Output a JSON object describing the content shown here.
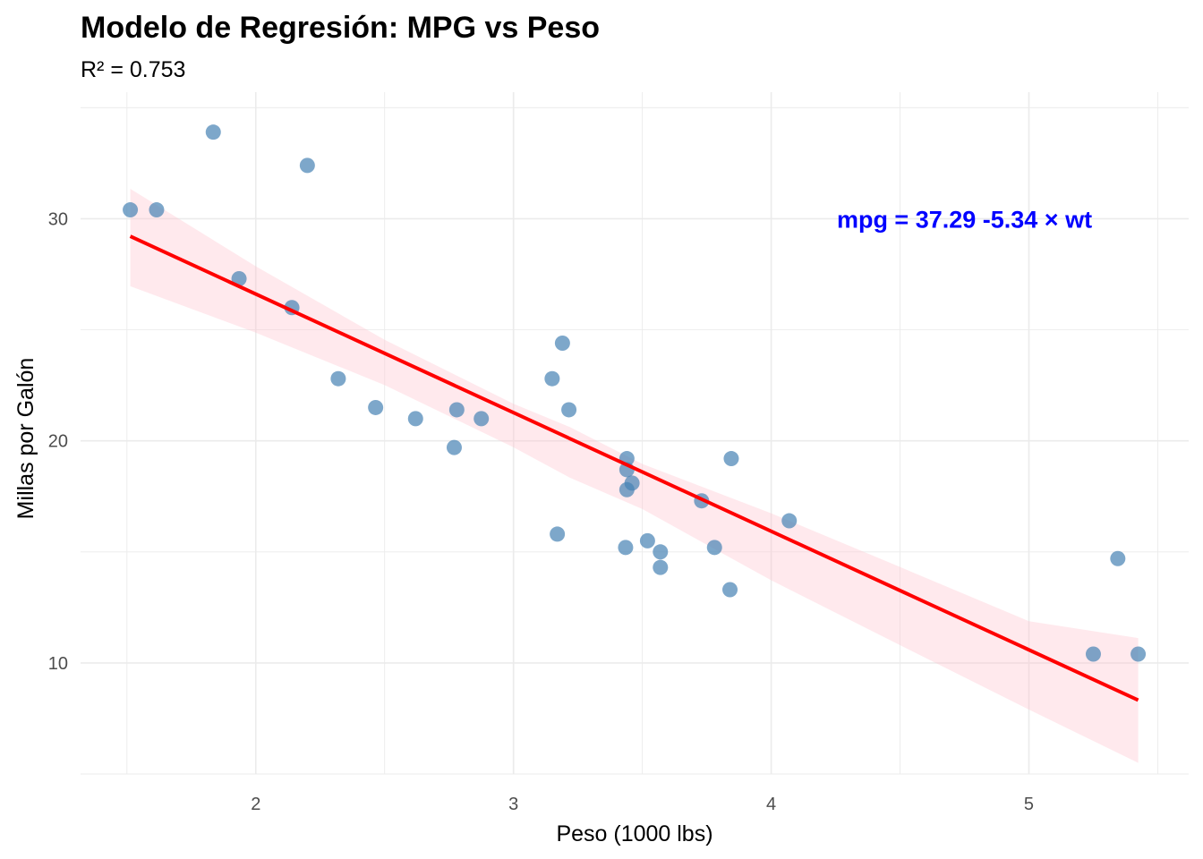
{
  "chart_data": {
    "type": "scatter",
    "title": "Modelo de Regresión: MPG vs Peso",
    "subtitle": "R² = 0.753",
    "xlabel": "Peso (1000 lbs)",
    "ylabel": "Millas por Galón",
    "xlim": [
      1.32,
      5.62
    ],
    "ylim": [
      5.0,
      35.7
    ],
    "x_ticks": [
      2,
      3,
      4,
      5
    ],
    "x_tick_labels": [
      "2",
      "3",
      "4",
      "5"
    ],
    "y_ticks": [
      10,
      20,
      30
    ],
    "y_tick_labels": [
      "10",
      "20",
      "30"
    ],
    "grid": true,
    "legend": "none",
    "series": [
      {
        "points": [
          {
            "x": 1.513,
            "y": 30.4
          },
          {
            "x": 1.615,
            "y": 30.4
          },
          {
            "x": 1.835,
            "y": 33.9
          },
          {
            "x": 1.935,
            "y": 27.3
          },
          {
            "x": 2.14,
            "y": 26.0
          },
          {
            "x": 2.2,
            "y": 32.4
          },
          {
            "x": 2.32,
            "y": 22.8
          },
          {
            "x": 2.465,
            "y": 21.5
          },
          {
            "x": 2.62,
            "y": 21.0
          },
          {
            "x": 2.77,
            "y": 19.7
          },
          {
            "x": 2.78,
            "y": 21.4
          },
          {
            "x": 2.875,
            "y": 21.0
          },
          {
            "x": 3.15,
            "y": 22.8
          },
          {
            "x": 3.17,
            "y": 15.8
          },
          {
            "x": 3.19,
            "y": 24.4
          },
          {
            "x": 3.215,
            "y": 21.4
          },
          {
            "x": 3.435,
            "y": 15.2
          },
          {
            "x": 3.44,
            "y": 18.7
          },
          {
            "x": 3.44,
            "y": 19.2
          },
          {
            "x": 3.44,
            "y": 17.8
          },
          {
            "x": 3.46,
            "y": 18.1
          },
          {
            "x": 3.52,
            "y": 15.5
          },
          {
            "x": 3.57,
            "y": 14.3
          },
          {
            "x": 3.57,
            "y": 15.0
          },
          {
            "x": 3.73,
            "y": 17.3
          },
          {
            "x": 3.78,
            "y": 15.2
          },
          {
            "x": 3.84,
            "y": 13.3
          },
          {
            "x": 3.845,
            "y": 19.2
          },
          {
            "x": 4.07,
            "y": 16.4
          },
          {
            "x": 5.25,
            "y": 10.4
          },
          {
            "x": 5.345,
            "y": 14.7
          },
          {
            "x": 5.424,
            "y": 10.4
          }
        ]
      }
    ],
    "regression": {
      "intercept": 37.29,
      "slope": -5.34,
      "x_range": [
        1.513,
        5.424
      ],
      "ci_band": [
        {
          "x": 1.513,
          "lower": 26.96,
          "upper": 31.35
        },
        {
          "x": 2.0,
          "lower": 24.87,
          "upper": 27.86
        },
        {
          "x": 2.5,
          "lower": 22.51,
          "upper": 24.55
        },
        {
          "x": 3.0,
          "lower": 19.71,
          "upper": 21.67
        },
        {
          "x": 3.217,
          "lower": 18.35,
          "upper": 20.63
        },
        {
          "x": 3.5,
          "lower": 16.93,
          "upper": 18.96
        },
        {
          "x": 4.0,
          "lower": 13.72,
          "upper": 16.74
        },
        {
          "x": 4.5,
          "lower": 10.8,
          "upper": 14.32
        },
        {
          "x": 5.0,
          "lower": 7.9,
          "upper": 11.88
        },
        {
          "x": 5.424,
          "lower": 5.5,
          "upper": 11.12
        }
      ],
      "line_color": "#ff0000",
      "band_color": "#ffc0cb"
    },
    "annotation": {
      "text": "mpg = 37.29  -5.34 × wt",
      "x": 4.75,
      "y": 30.0,
      "color": "#0000ff"
    },
    "point_color": "#4682b4"
  }
}
